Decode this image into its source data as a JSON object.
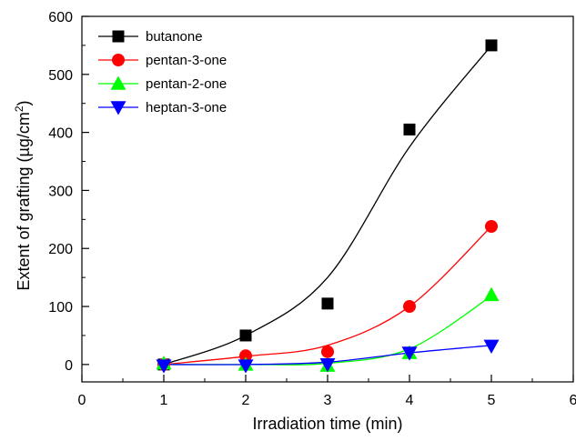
{
  "chart_data": {
    "type": "scatter",
    "title": "",
    "xlabel": "Irradiation time (min)",
    "ylabel": {
      "main": "Extent of grafting (µg/cm",
      "sup": "2",
      "close": ")"
    },
    "xlim": [
      0,
      6
    ],
    "ylim": [
      -30,
      600
    ],
    "xticks": [
      0,
      1,
      2,
      3,
      4,
      5,
      6
    ],
    "yticks": [
      0,
      100,
      200,
      300,
      400,
      500,
      600
    ],
    "xtick_labels": [
      "0",
      "1",
      "2",
      "3",
      "4",
      "5",
      "6"
    ],
    "ytick_labels": [
      "0",
      "100",
      "200",
      "300",
      "400",
      "500",
      "600"
    ],
    "x_minor_step": 0.5,
    "y_minor_step": 50,
    "grid": false,
    "legend_position": "top-left",
    "series": [
      {
        "name": "butanone",
        "color": "#000000",
        "marker": "square",
        "x": [
          1,
          2,
          3,
          4,
          5
        ],
        "values": [
          0,
          50,
          105,
          405,
          550
        ],
        "fit": [
          [
            1,
            0
          ],
          [
            2,
            50
          ],
          [
            3,
            150
          ],
          [
            4,
            375
          ],
          [
            5,
            550
          ]
        ]
      },
      {
        "name": "pentan-3-one",
        "color": "#ff0000",
        "marker": "circle",
        "x": [
          1,
          2,
          3,
          4,
          5
        ],
        "values": [
          0,
          15,
          22,
          100,
          238
        ],
        "fit": [
          [
            1,
            0
          ],
          [
            2,
            14
          ],
          [
            3,
            33
          ],
          [
            4,
            100
          ],
          [
            5,
            238
          ]
        ]
      },
      {
        "name": "pentan-2-one",
        "color": "#00ff00",
        "marker": "triangle-up",
        "x": [
          1,
          2,
          3,
          4,
          5
        ],
        "values": [
          2,
          0,
          -2,
          20,
          120
        ],
        "fit": [
          [
            1,
            0
          ],
          [
            2,
            0
          ],
          [
            3,
            2
          ],
          [
            4,
            27
          ],
          [
            5,
            118
          ]
        ]
      },
      {
        "name": "heptan-3-one",
        "color": "#0000ff",
        "marker": "triangle-down",
        "x": [
          1,
          2,
          3,
          4,
          5
        ],
        "values": [
          -2,
          -2,
          0,
          20,
          32
        ],
        "fit": [
          [
            1,
            0
          ],
          [
            2,
            0
          ],
          [
            3,
            4
          ],
          [
            4,
            20
          ],
          [
            5,
            33
          ]
        ]
      }
    ]
  }
}
